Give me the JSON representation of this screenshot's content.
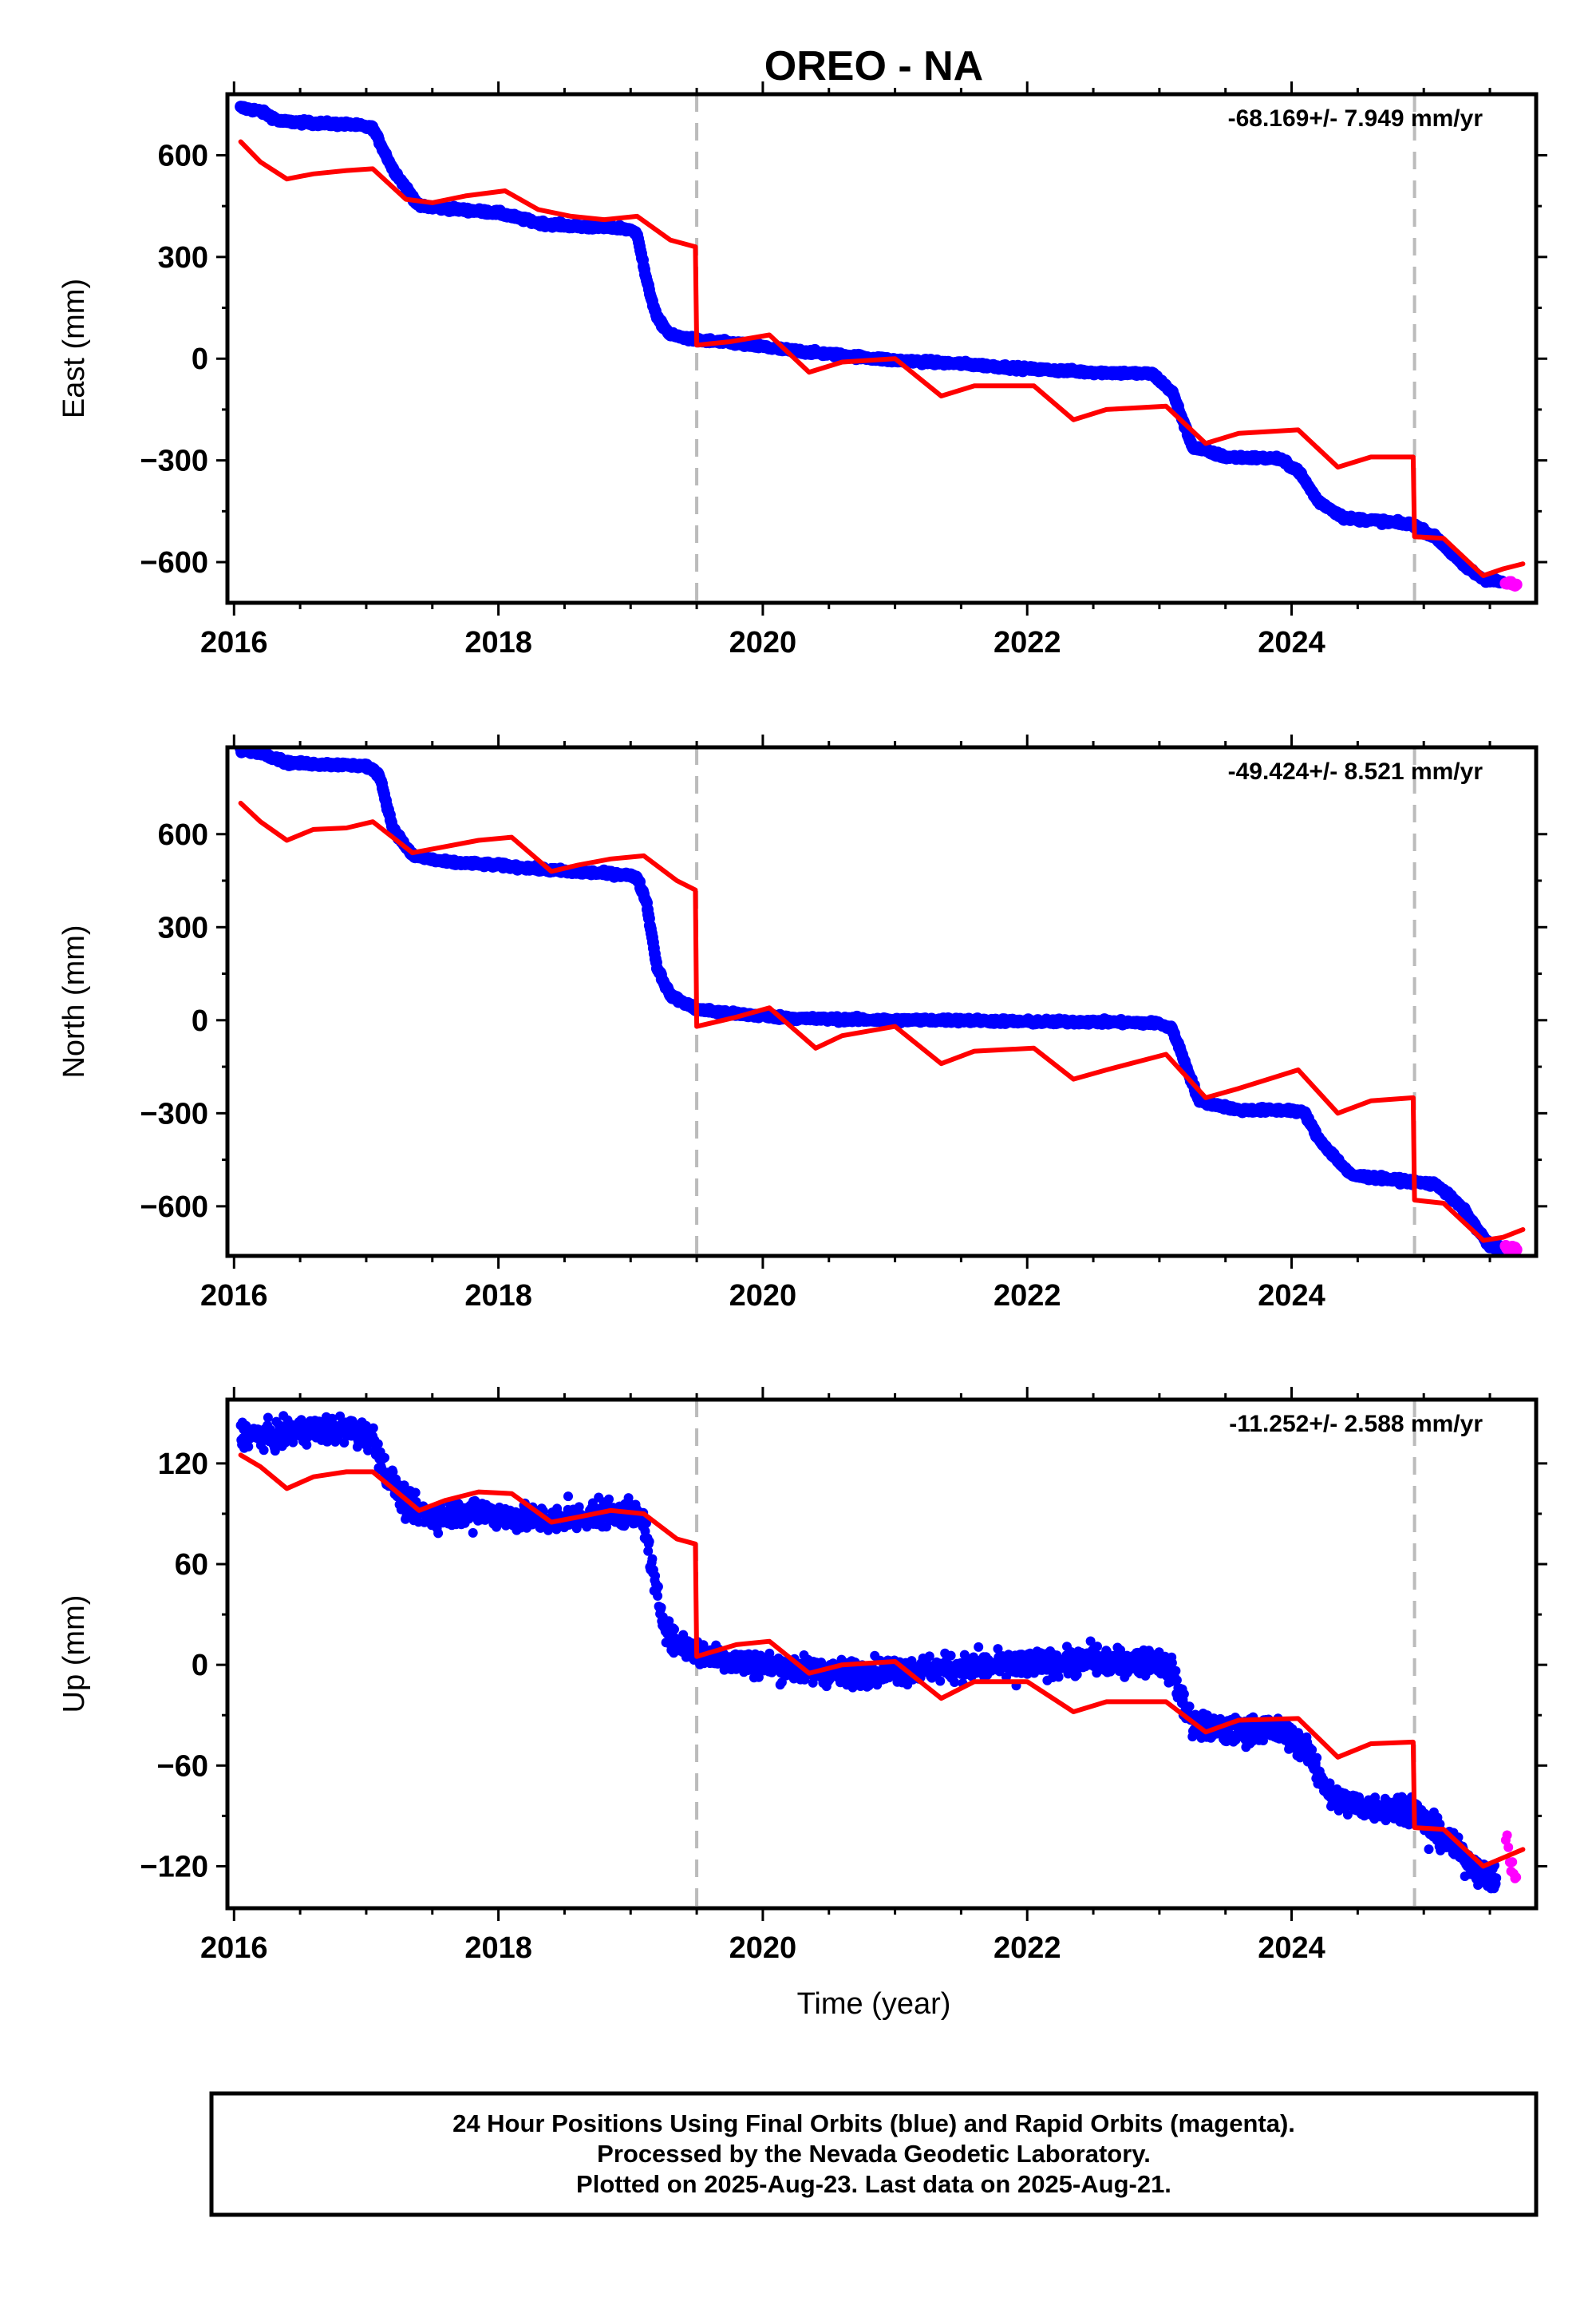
{
  "chart_data": {
    "type": "scatter",
    "title": "OREO - NA",
    "xlabel": "Time (year)",
    "xlim": [
      2015.95,
      2025.85
    ],
    "x_ticks": [
      2016,
      2018,
      2020,
      2022,
      2024
    ],
    "x_tick_labels": [
      "2016",
      "2018",
      "2020",
      "2022",
      "2024"
    ],
    "equipment_change_lines": [
      2019.5,
      2024.93
    ],
    "colors": {
      "final_orbits": "#0000ff",
      "rapid_orbits": "#ff00ff",
      "model": "#ff0000",
      "vertical_lines": "#bbbbbb"
    },
    "panels": [
      {
        "component": "East",
        "ylabel": "East (mm)",
        "ylim": [
          -720,
          780
        ],
        "y_ticks": [
          600,
          300,
          0,
          -300,
          -600
        ],
        "y_tick_labels": [
          "600",
          "300",
          "0",
          "−300",
          "−600"
        ],
        "rate_label": "-68.169+/- 7.949 mm/yr",
        "series": [
          {
            "name": "Final Orbits (blue)",
            "x": [
              2016.05,
              2016.2,
              2016.35,
              2016.6,
              2016.9,
              2017.05,
              2017.2,
              2017.4,
              2017.7,
              2018.0,
              2018.3,
              2018.6,
              2018.95,
              2019.05,
              2019.12,
              2019.2,
              2019.3,
              2019.5,
              2019.8,
              2020.2,
              2020.6,
              2021.0,
              2021.5,
              2022.0,
              2022.5,
              2022.95,
              2023.1,
              2023.25,
              2023.5,
              2023.9,
              2024.05,
              2024.2,
              2024.4,
              2024.7,
              2024.92,
              2025.1,
              2025.3,
              2025.45,
              2025.6
            ],
            "y": [
              740,
              730,
              700,
              695,
              690,
              680,
              560,
              450,
              440,
              430,
              400,
              390,
              385,
              370,
              230,
              120,
              70,
              55,
              45,
              25,
              10,
              -5,
              -15,
              -30,
              -40,
              -45,
              -100,
              -260,
              -290,
              -295,
              -330,
              -420,
              -470,
              -480,
              -490,
              -530,
              -610,
              -650,
              -660
            ]
          },
          {
            "name": "Rapid Orbits (magenta)",
            "x": [
              2025.62,
              2025.66,
              2025.7
            ],
            "y": [
              -660,
              -665,
              -668
            ]
          },
          {
            "name": "Model (red)",
            "x": [
              2016.05,
              2016.2,
              2016.4,
              2016.6,
              2016.85,
              2017.05,
              2017.3,
              2017.5,
              2017.75,
              2018.05,
              2018.3,
              2018.55,
              2018.8,
              2019.05,
              2019.3,
              2019.49,
              2019.5,
              2019.75,
              2020.05,
              2020.35,
              2020.6,
              2021.0,
              2021.35,
              2021.6,
              2022.05,
              2022.35,
              2022.6,
              2023.05,
              2023.35,
              2023.6,
              2024.05,
              2024.35,
              2024.6,
              2024.92,
              2024.93,
              2025.15,
              2025.45,
              2025.6,
              2025.75
            ],
            "y": [
              640,
              580,
              530,
              545,
              555,
              560,
              470,
              460,
              480,
              495,
              440,
              420,
              410,
              420,
              350,
              330,
              40,
              50,
              70,
              -40,
              -10,
              0,
              -110,
              -80,
              -80,
              -180,
              -150,
              -140,
              -250,
              -220,
              -210,
              -320,
              -290,
              -290,
              -525,
              -530,
              -640,
              -620,
              -605
            ]
          }
        ]
      },
      {
        "component": "North",
        "ylabel": "North (mm)",
        "ylim": [
          -760,
          880
        ],
        "y_ticks": [
          600,
          300,
          0,
          -300,
          -600
        ],
        "y_tick_labels": [
          "600",
          "300",
          "0",
          "−300",
          "−600"
        ],
        "rate_label": "-49.424+/- 8.521 mm/yr",
        "series": [
          {
            "name": "Final Orbits (blue)",
            "x": [
              2016.05,
              2016.2,
              2016.4,
              2016.7,
              2017.0,
              2017.1,
              2017.2,
              2017.35,
              2017.6,
              2018.0,
              2018.5,
              2018.95,
              2019.05,
              2019.12,
              2019.2,
              2019.3,
              2019.5,
              2019.8,
              2020.3,
              2021.0,
              2021.5,
              2022.0,
              2022.5,
              2023.0,
              2023.1,
              2023.3,
              2023.6,
              2024.0,
              2024.1,
              2024.2,
              2024.45,
              2024.9,
              2025.1,
              2025.3,
              2025.5,
              2025.6
            ],
            "y": [
              870,
              865,
              830,
              825,
              820,
              790,
              620,
              530,
              510,
              500,
              480,
              470,
              460,
              380,
              170,
              80,
              35,
              20,
              5,
              0,
              0,
              -5,
              -5,
              -10,
              -30,
              -260,
              -290,
              -290,
              -300,
              -380,
              -500,
              -520,
              -530,
              -610,
              -730,
              -735
            ]
          },
          {
            "name": "Rapid Orbits (magenta)",
            "x": [
              2025.62,
              2025.66,
              2025.7
            ],
            "y": [
              -733,
              -735,
              -737
            ]
          },
          {
            "name": "Model (red)",
            "x": [
              2016.05,
              2016.2,
              2016.4,
              2016.6,
              2016.85,
              2017.05,
              2017.35,
              2017.6,
              2017.85,
              2018.1,
              2018.4,
              2018.6,
              2018.85,
              2019.1,
              2019.35,
              2019.49,
              2019.5,
              2019.8,
              2020.05,
              2020.4,
              2020.6,
              2021.0,
              2021.35,
              2021.6,
              2022.05,
              2022.35,
              2022.6,
              2023.05,
              2023.35,
              2023.6,
              2024.05,
              2024.35,
              2024.6,
              2024.92,
              2024.93,
              2025.15,
              2025.45,
              2025.6,
              2025.75
            ],
            "y": [
              700,
              640,
              580,
              615,
              620,
              640,
              540,
              560,
              580,
              590,
              480,
              500,
              520,
              530,
              450,
              420,
              -20,
              10,
              40,
              -90,
              -50,
              -20,
              -140,
              -100,
              -90,
              -190,
              -160,
              -110,
              -250,
              -220,
              -160,
              -300,
              -260,
              -250,
              -580,
              -590,
              -710,
              -700,
              -675
            ]
          }
        ]
      },
      {
        "component": "Up",
        "ylabel": "Up (mm)",
        "ylim": [
          -145,
          158
        ],
        "y_ticks": [
          120,
          60,
          0,
          -60,
          -120
        ],
        "y_tick_labels": [
          "120",
          "60",
          "0",
          "−60",
          "−120"
        ],
        "rate_label": "-11.252+/- 2.588 mm/yr",
        "series": [
          {
            "name": "Final Orbits (blue)",
            "x": [
              2016.05,
              2016.3,
              2016.6,
              2016.9,
              2017.05,
              2017.15,
              2017.3,
              2017.5,
              2017.8,
              2018.1,
              2018.4,
              2018.8,
              2019.0,
              2019.1,
              2019.2,
              2019.3,
              2019.5,
              2019.8,
              2020.2,
              2020.6,
              2021.0,
              2021.5,
              2022.0,
              2022.5,
              2023.0,
              2023.1,
              2023.25,
              2023.5,
              2023.8,
              2024.0,
              2024.15,
              2024.3,
              2024.6,
              2024.9,
              2025.1,
              2025.3,
              2025.45,
              2025.55
            ],
            "y": [
              138,
              136,
              140,
              140,
              135,
              115,
              95,
              88,
              92,
              88,
              86,
              90,
              90,
              86,
              40,
              15,
              8,
              2,
              -2,
              -5,
              -3,
              -2,
              0,
              2,
              2,
              -5,
              -35,
              -40,
              -38,
              -42,
              -55,
              -80,
              -85,
              -85,
              -100,
              -115,
              -125,
              -128
            ]
          },
          {
            "name": "Rapid Orbits (magenta)",
            "x": [
              2025.62,
              2025.65,
              2025.68,
              2025.7
            ],
            "y": [
              -100,
              -118,
              -125,
              -130
            ]
          },
          {
            "name": "Model (red)",
            "x": [
              2016.05,
              2016.2,
              2016.4,
              2016.6,
              2016.85,
              2017.05,
              2017.4,
              2017.6,
              2017.85,
              2018.1,
              2018.4,
              2018.6,
              2018.85,
              2019.1,
              2019.35,
              2019.49,
              2019.5,
              2019.8,
              2020.05,
              2020.35,
              2020.6,
              2021.0,
              2021.35,
              2021.6,
              2022.0,
              2022.35,
              2022.6,
              2023.05,
              2023.35,
              2023.6,
              2024.05,
              2024.35,
              2024.6,
              2024.92,
              2024.93,
              2025.15,
              2025.45,
              2025.6,
              2025.75
            ],
            "y": [
              125,
              118,
              105,
              112,
              115,
              115,
              92,
              98,
              103,
              102,
              85,
              88,
              92,
              90,
              75,
              72,
              5,
              12,
              14,
              -5,
              0,
              2,
              -20,
              -10,
              -10,
              -28,
              -22,
              -22,
              -40,
              -33,
              -32,
              -55,
              -47,
              -46,
              -97,
              -98,
              -120,
              -115,
              -110
            ]
          }
        ]
      }
    ]
  },
  "footer": {
    "line1": "24 Hour Positions Using Final Orbits (blue) and Rapid Orbits (magenta).",
    "line2": "Processed by the Nevada Geodetic Laboratory.",
    "line3": "Plotted on 2025-Aug-23. Last data on 2025-Aug-21."
  }
}
